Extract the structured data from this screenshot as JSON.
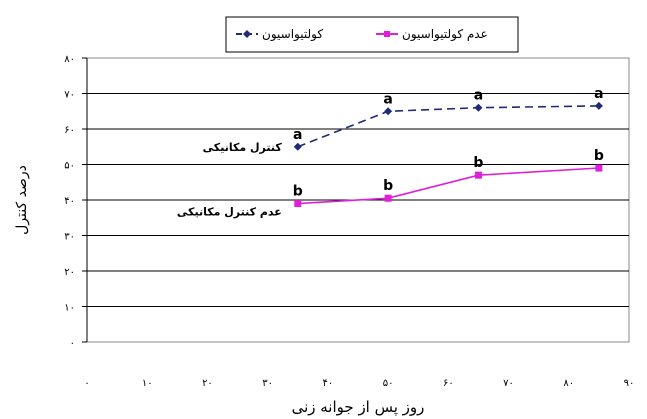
{
  "chart_data": {
    "type": "line",
    "title": "",
    "xlabel": "روز پس از جوانه زنی",
    "ylabel": "درصد کنترل",
    "xlim": [
      0,
      90
    ],
    "ylim": [
      0,
      80
    ],
    "x_ticks": [
      0,
      10,
      20,
      30,
      40,
      50,
      60,
      70,
      80,
      90
    ],
    "x_tick_labels": [
      "۰",
      "۱۰",
      "۲۰",
      "۳۰",
      "۴۰",
      "۵۰",
      "۶۰",
      "۷۰",
      "۸۰",
      "۹۰"
    ],
    "y_ticks": [
      0,
      10,
      20,
      30,
      40,
      50,
      60,
      70,
      80
    ],
    "y_tick_labels": [
      "۰",
      "۱۰",
      "۲۰",
      "۳۰",
      "۴۰",
      "۵۰",
      "۶۰",
      "۷۰",
      "۸۰"
    ],
    "grid": "horizontal",
    "legend_position": "top",
    "series": [
      {
        "name": "کولتیواسیون",
        "color": "#1f2a78",
        "line_style": "dashed",
        "marker": "diamond",
        "x": [
          35,
          50,
          65,
          85
        ],
        "y": [
          55,
          65,
          66,
          66.5
        ],
        "point_labels": [
          "a",
          "a",
          "a",
          "a"
        ],
        "annotation": "کنترل مکانیکی"
      },
      {
        "name": "عدم کولتیواسیون",
        "color": "#e020d8",
        "line_style": "solid",
        "marker": "square",
        "x": [
          35,
          50,
          65,
          85
        ],
        "y": [
          39,
          40.5,
          47,
          49
        ],
        "point_labels": [
          "b",
          "b",
          "b",
          "b"
        ],
        "annotation": "عدم کنترل مکانیکی"
      }
    ]
  }
}
